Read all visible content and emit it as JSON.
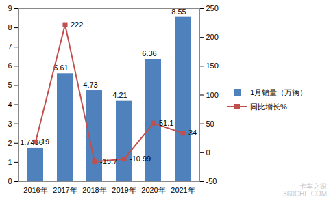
{
  "chart_data": {
    "type": "bar",
    "categories": [
      "2016年",
      "2017年",
      "2018年",
      "2019年",
      "2020年",
      "2021年"
    ],
    "series": [
      {
        "name": "1月销量（万辆）",
        "type": "bar",
        "color": "#4f81bd",
        "values": [
          1.7456,
          5.61,
          4.73,
          4.21,
          6.36,
          8.55
        ]
      },
      {
        "name": "同比增长%",
        "type": "line",
        "color": "#c0504d",
        "marker": "square",
        "axis": "y2",
        "values": [
          19,
          222,
          -15.7,
          -10.99,
          51.1,
          34
        ]
      }
    ],
    "ylim": [
      0,
      9
    ],
    "yticks": [
      0,
      1,
      2,
      3,
      4,
      5,
      6,
      7,
      8,
      9
    ],
    "y2lim": [
      -50,
      250
    ],
    "y2ticks": [
      -50,
      0,
      50,
      100,
      150,
      200,
      250
    ],
    "data_labels": true,
    "legend": "right",
    "grid": false,
    "annotations": [
      "卡车之家",
      "360CHE.COM"
    ]
  }
}
